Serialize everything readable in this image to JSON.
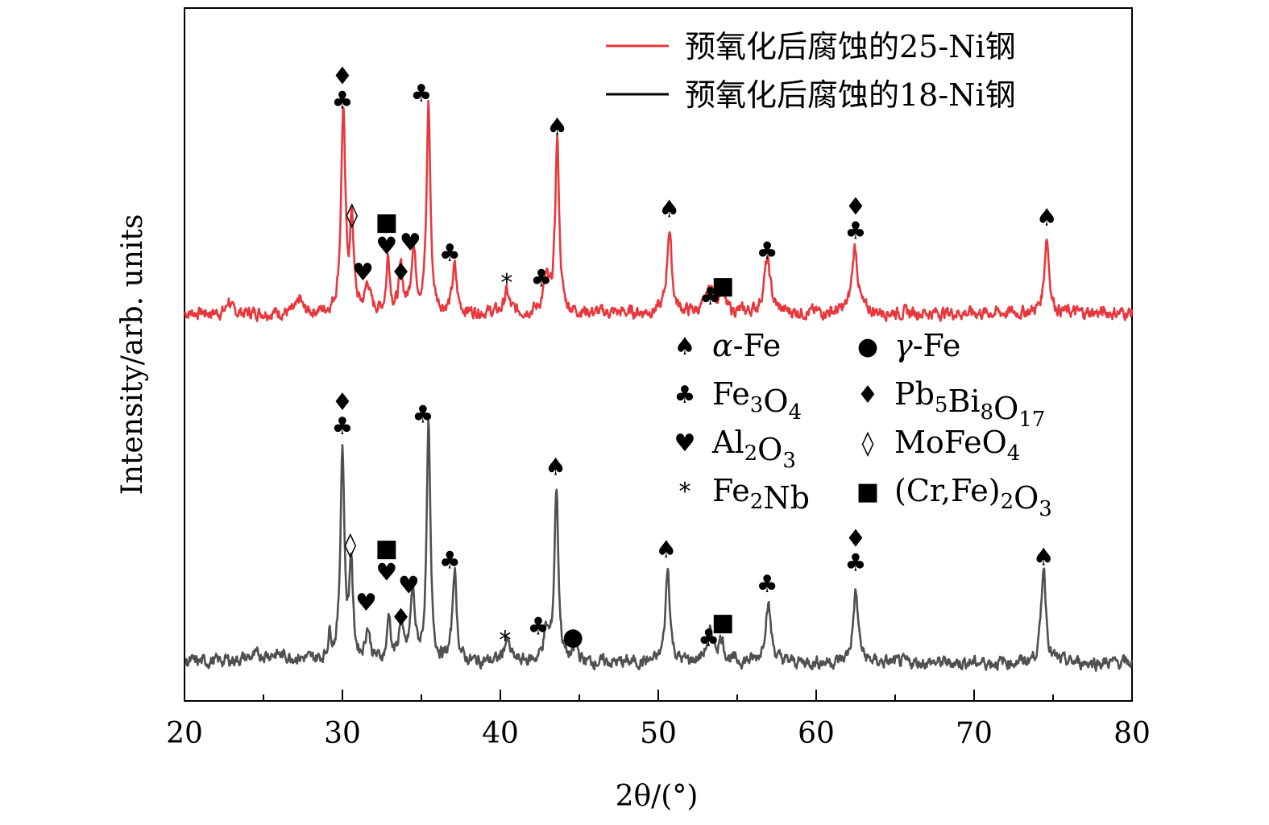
{
  "chart_data": {
    "type": "line",
    "xlabel": "2θ/(°)",
    "ylabel": "Intensity/arb. units",
    "xlim": [
      20,
      80
    ],
    "ylim": [
      0,
      10
    ],
    "xticks": [
      "20",
      "30",
      "40",
      "50",
      "60",
      "70",
      "80"
    ],
    "grid": false,
    "legend": {
      "placement": "top-right"
    },
    "series": [
      {
        "name": "预氧化后腐蚀的25-Ni钢",
        "color": "#e8383d",
        "baseline": 5.6,
        "peaks": [
          [
            22.8,
            0.2,
            0.12
          ],
          [
            27.3,
            0.2,
            0.15
          ],
          [
            30.05,
            2.9,
            0.16
          ],
          [
            30.6,
            1.3,
            0.13
          ],
          [
            31.6,
            0.4,
            0.18
          ],
          [
            32.9,
            0.8,
            0.13
          ],
          [
            33.7,
            0.6,
            0.15
          ],
          [
            34.5,
            0.9,
            0.18
          ],
          [
            35.45,
            3.0,
            0.14
          ],
          [
            37.1,
            0.65,
            0.16
          ],
          [
            40.4,
            0.3,
            0.18
          ],
          [
            42.9,
            0.45,
            0.22
          ],
          [
            43.6,
            2.5,
            0.15
          ],
          [
            50.7,
            1.2,
            0.18
          ],
          [
            53.3,
            0.35,
            0.3
          ],
          [
            54.0,
            0.3,
            0.2
          ],
          [
            56.9,
            0.75,
            0.25
          ],
          [
            62.45,
            0.95,
            0.22
          ],
          [
            74.6,
            1.1,
            0.18
          ]
        ]
      },
      {
        "name": "预氧化后腐蚀的18-Ni钢",
        "color": "#505050",
        "baseline": 0.55,
        "peaks": [
          [
            25.5,
            0.12,
            1.8
          ],
          [
            29.2,
            0.35,
            0.13
          ],
          [
            30.0,
            3.05,
            0.15
          ],
          [
            30.55,
            1.4,
            0.13
          ],
          [
            31.6,
            0.45,
            0.18
          ],
          [
            32.95,
            0.65,
            0.13
          ],
          [
            33.7,
            0.55,
            0.15
          ],
          [
            34.45,
            1.0,
            0.17
          ],
          [
            35.45,
            3.4,
            0.14
          ],
          [
            37.1,
            1.35,
            0.15
          ],
          [
            40.4,
            0.3,
            0.25
          ],
          [
            42.9,
            0.4,
            0.22
          ],
          [
            43.55,
            2.5,
            0.15
          ],
          [
            44.8,
            0.25,
            0.15
          ],
          [
            50.6,
            1.35,
            0.17
          ],
          [
            53.3,
            0.4,
            0.3
          ],
          [
            54.0,
            0.3,
            0.2
          ],
          [
            56.95,
            0.85,
            0.22
          ],
          [
            62.5,
            1.0,
            0.2
          ],
          [
            74.4,
            1.4,
            0.18
          ]
        ]
      }
    ],
    "annotations": [
      {
        "series": 0,
        "x": 30.0,
        "y": 8.55,
        "symbols": [
          "♦",
          "♣"
        ]
      },
      {
        "series": 0,
        "x": 30.6,
        "y": 6.9,
        "symbols": [
          "◊"
        ]
      },
      {
        "series": 0,
        "x": 31.3,
        "y": 6.07,
        "symbols": [
          "♥"
        ]
      },
      {
        "series": 0,
        "x": 32.8,
        "y": 6.45,
        "symbols": [
          "■",
          "♥"
        ]
      },
      {
        "series": 0,
        "x": 33.7,
        "y": 6.07,
        "symbols": [
          "♦"
        ]
      },
      {
        "series": 0,
        "x": 34.3,
        "y": 6.5,
        "symbols": [
          "♥"
        ]
      },
      {
        "series": 0,
        "x": 35.0,
        "y": 8.65,
        "symbols": [
          "♣"
        ]
      },
      {
        "series": 0,
        "x": 36.8,
        "y": 6.35,
        "symbols": [
          "♣"
        ]
      },
      {
        "series": 0,
        "x": 40.4,
        "y": 5.92,
        "symbols": [
          "*"
        ]
      },
      {
        "series": 0,
        "x": 42.6,
        "y": 5.98,
        "symbols": [
          "♣"
        ]
      },
      {
        "series": 0,
        "x": 43.6,
        "y": 8.17,
        "symbols": [
          "♠"
        ]
      },
      {
        "series": 0,
        "x": 50.7,
        "y": 6.98,
        "symbols": [
          "♠"
        ]
      },
      {
        "series": 0,
        "x": 53.3,
        "y": 5.72,
        "symbols": [
          "♣"
        ]
      },
      {
        "series": 0,
        "x": 54.1,
        "y": 5.88,
        "symbols": [
          "■"
        ]
      },
      {
        "series": 0,
        "x": 56.9,
        "y": 6.38,
        "symbols": [
          "♣"
        ]
      },
      {
        "series": 0,
        "x": 62.5,
        "y": 6.67,
        "symbols": [
          "♦",
          "♣"
        ]
      },
      {
        "series": 0,
        "x": 74.6,
        "y": 6.86,
        "symbols": [
          "♠"
        ]
      },
      {
        "series": 1,
        "x": 30.0,
        "y": 3.85,
        "symbols": [
          "♦",
          "♣"
        ]
      },
      {
        "series": 1,
        "x": 30.5,
        "y": 2.14,
        "symbols": [
          "◊"
        ]
      },
      {
        "series": 1,
        "x": 31.5,
        "y": 1.3,
        "symbols": [
          "♥"
        ]
      },
      {
        "series": 1,
        "x": 32.8,
        "y": 1.74,
        "symbols": [
          "■",
          "♥"
        ]
      },
      {
        "series": 1,
        "x": 33.7,
        "y": 1.09,
        "symbols": [
          "♦"
        ]
      },
      {
        "series": 1,
        "x": 34.2,
        "y": 1.55,
        "symbols": [
          "♥"
        ]
      },
      {
        "series": 1,
        "x": 35.1,
        "y": 4.02,
        "symbols": [
          "♣"
        ]
      },
      {
        "series": 1,
        "x": 36.8,
        "y": 1.91,
        "symbols": [
          "♣"
        ]
      },
      {
        "series": 1,
        "x": 40.3,
        "y": 0.76,
        "symbols": [
          "*"
        ]
      },
      {
        "series": 1,
        "x": 42.4,
        "y": 0.96,
        "symbols": [
          "♣"
        ]
      },
      {
        "series": 1,
        "x": 44.6,
        "y": 0.81,
        "symbols": [
          "●"
        ]
      },
      {
        "series": 1,
        "x": 43.5,
        "y": 3.26,
        "symbols": [
          "♠"
        ]
      },
      {
        "series": 1,
        "x": 50.5,
        "y": 2.07,
        "symbols": [
          "♠"
        ]
      },
      {
        "series": 1,
        "x": 53.2,
        "y": 0.79,
        "symbols": [
          "♣"
        ]
      },
      {
        "series": 1,
        "x": 54.1,
        "y": 1.02,
        "symbols": [
          "■"
        ]
      },
      {
        "series": 1,
        "x": 56.9,
        "y": 1.57,
        "symbols": [
          "♣"
        ]
      },
      {
        "series": 1,
        "x": 62.5,
        "y": 1.88,
        "symbols": [
          "♦",
          "♣"
        ]
      },
      {
        "series": 1,
        "x": 74.4,
        "y": 1.96,
        "symbols": [
          "♠"
        ]
      }
    ]
  },
  "phase_legend": {
    "left": [
      {
        "symbol": "♠",
        "name": "α-Fe"
      },
      {
        "symbol": "♣",
        "name": "Fe3O4"
      },
      {
        "symbol": "♥",
        "name": "Al2O3"
      },
      {
        "symbol": "*",
        "name": "Fe2Nb"
      }
    ],
    "right": [
      {
        "symbol": "●",
        "name": "γ-Fe"
      },
      {
        "symbol": "♦",
        "name": "Pb5Bi8O17"
      },
      {
        "symbol": "◊",
        "name": "MoFeO4"
      },
      {
        "symbol": "■",
        "name": "(Cr,Fe)2O3"
      }
    ]
  }
}
